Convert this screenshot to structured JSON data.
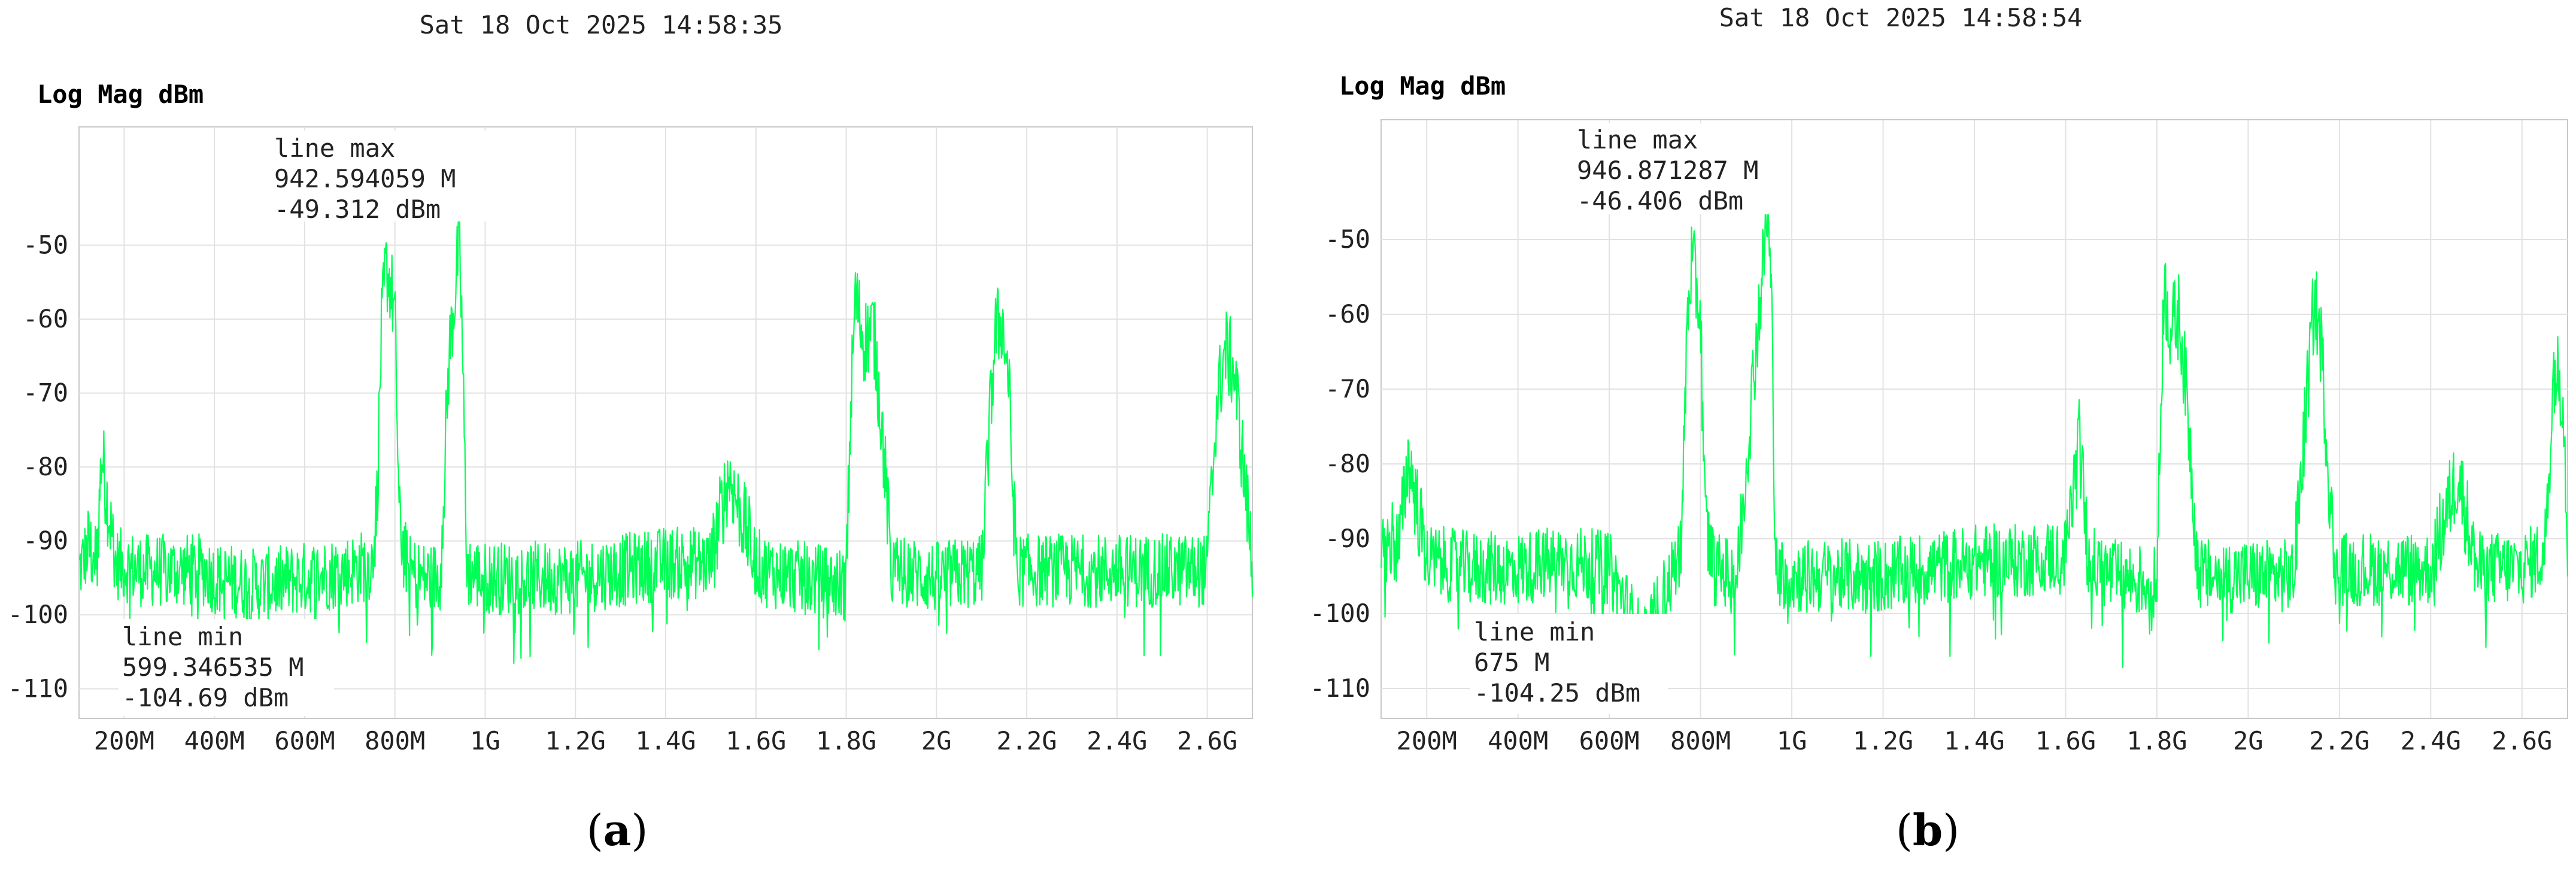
{
  "panels": [
    {
      "id": "a",
      "timestamp": "Sat 18 Oct 2025 14:58:35",
      "ylabel": "Log Mag dBm",
      "caption_open": "(",
      "caption_letter": "a",
      "caption_close": ")",
      "max_marker": {
        "title": "line max",
        "freq": "942.594059 M",
        "level": "-49.312 dBm"
      },
      "min_marker": {
        "title": "line min",
        "freq": "599.346535 M",
        "level": "-104.69 dBm"
      }
    },
    {
      "id": "b",
      "timestamp": "Sat 18 Oct 2025 14:58:54",
      "ylabel": "Log Mag dBm",
      "caption_open": "(",
      "caption_letter": "b",
      "caption_close": ")",
      "max_marker": {
        "title": "line max",
        "freq": "946.871287 M",
        "level": "-46.406 dBm"
      },
      "min_marker": {
        "title": "line min",
        "freq": "675 M",
        "level": "-104.25 dBm"
      }
    }
  ],
  "chart_data": [
    {
      "type": "line",
      "title": "Sat 18 Oct 2025 14:58:35",
      "ylabel": "Log Mag dBm",
      "xlabel": "",
      "x_unit": "Hz",
      "xlim": [
        100000000,
        2700000000
      ],
      "ylim": [
        -114,
        -34
      ],
      "grid": true,
      "line_color": "#00ff55",
      "x_tick_values": [
        200000000,
        400000000,
        600000000,
        800000000,
        1000000000,
        1200000000,
        1400000000,
        1600000000,
        1800000000,
        2000000000,
        2200000000,
        2400000000,
        2600000000
      ],
      "x_tick_labels": [
        "200M",
        "400M",
        "600M",
        "800M",
        "1G",
        "1.2G",
        "1.4G",
        "1.6G",
        "1.8G",
        "2G",
        "2.2G",
        "2.4G",
        "2.6G"
      ],
      "y_tick_values": [
        -50,
        -60,
        -70,
        -80,
        -90,
        -100,
        -110
      ],
      "y_tick_labels": [
        "-50",
        "-60",
        "-70",
        "-80",
        "-90",
        "-100",
        "-110"
      ],
      "noise_floor_dBm": -94.5,
      "markers": [
        {
          "label": "line max",
          "x": 942594059,
          "y": -49.312
        },
        {
          "label": "line min",
          "x": 599346535,
          "y": -104.69
        }
      ],
      "series": [
        {
          "x": [
            100000000,
            120000000,
            140000000,
            150000000,
            180000000,
            240000000,
            300000000,
            380000000,
            400000000,
            500000000,
            600000000,
            700000000,
            750000000,
            760000000,
            770000000,
            780000000,
            790000000,
            800000000,
            810000000,
            830000000,
            860000000,
            900000000,
            920000000,
            935000000,
            942000000,
            948000000,
            960000000,
            1000000000,
            1100000000,
            1200000000,
            1300000000,
            1400000000,
            1500000000,
            1540000000,
            1600000000,
            1620000000,
            1700000000,
            1800000000,
            1810000000,
            1820000000,
            1840000000,
            1860000000,
            1880000000,
            1900000000,
            2000000000,
            2100000000,
            2120000000,
            2130000000,
            2145000000,
            2160000000,
            2170000000,
            2180000000,
            2300000000,
            2400000000,
            2500000000,
            2600000000,
            2620000000,
            2640000000,
            2660000000,
            2680000000,
            2700000000
          ],
          "y": [
            -94,
            -91,
            -92,
            -78,
            -93,
            -94,
            -94,
            -94,
            -95,
            -96,
            -95,
            -94,
            -93,
            -85,
            -62,
            -53,
            -55,
            -60,
            -88,
            -94,
            -95,
            -95,
            -65,
            -55,
            -49.3,
            -60,
            -94,
            -95,
            -95,
            -95,
            -94,
            -93,
            -93,
            -81,
            -93,
            -94,
            -95,
            -96,
            -72,
            -57,
            -63,
            -61,
            -75,
            -94,
            -95,
            -94,
            -72,
            -62,
            -60,
            -68,
            -85,
            -94,
            -94,
            -94,
            -94,
            -94,
            -72,
            -64,
            -67,
            -80,
            -93
          ]
        }
      ]
    },
    {
      "type": "line",
      "title": "Sat 18 Oct 2025 14:58:54",
      "ylabel": "Log Mag dBm",
      "xlabel": "",
      "x_unit": "Hz",
      "xlim": [
        100000000,
        2700000000
      ],
      "ylim": [
        -114,
        -34
      ],
      "grid": true,
      "line_color": "#00ff55",
      "x_tick_values": [
        200000000,
        400000000,
        600000000,
        800000000,
        1000000000,
        1200000000,
        1400000000,
        1600000000,
        1800000000,
        2000000000,
        2200000000,
        2400000000,
        2600000000
      ],
      "x_tick_labels": [
        "200M",
        "400M",
        "600M",
        "800M",
        "1G",
        "1.2G",
        "1.4G",
        "1.6G",
        "1.8G",
        "2G",
        "2.2G",
        "2.4G",
        "2.6G"
      ],
      "y_tick_values": [
        -50,
        -60,
        -70,
        -80,
        -90,
        -100,
        -110
      ],
      "y_tick_labels": [
        "-50",
        "-60",
        "-70",
        "-80",
        "-90",
        "-100",
        "-110"
      ],
      "noise_floor_dBm": -94,
      "markers": [
        {
          "label": "line max",
          "x": 946871287,
          "y": -46.406
        },
        {
          "label": "line min",
          "x": 675000000,
          "y": -104.25
        }
      ],
      "series": [
        {
          "x": [
            100000000,
            120000000,
            140000000,
            160000000,
            200000000,
            300000000,
            400000000,
            500000000,
            600000000,
            675000000,
            750000000,
            760000000,
            770000000,
            780000000,
            790000000,
            800000000,
            810000000,
            830000000,
            880000000,
            920000000,
            935000000,
            946000000,
            955000000,
            965000000,
            1000000000,
            1100000000,
            1200000000,
            1300000000,
            1400000000,
            1500000000,
            1600000000,
            1630000000,
            1650000000,
            1700000000,
            1800000000,
            1815000000,
            1830000000,
            1850000000,
            1870000000,
            1890000000,
            1900000000,
            2000000000,
            2100000000,
            2130000000,
            2145000000,
            2160000000,
            2175000000,
            2190000000,
            2300000000,
            2400000000,
            2460000000,
            2500000000,
            2600000000,
            2650000000,
            2670000000,
            2690000000,
            2700000000
          ],
          "y": [
            -93,
            -90,
            -91,
            -79,
            -93,
            -94,
            -94,
            -93,
            -94,
            -104.25,
            -93,
            -88,
            -62,
            -53,
            -56,
            -60,
            -88,
            -94,
            -95,
            -65,
            -55,
            -46.4,
            -57,
            -94,
            -95,
            -95,
            -95,
            -94,
            -93,
            -93,
            -92,
            -77,
            -93,
            -95,
            -96,
            -56,
            -62,
            -60,
            -75,
            -94,
            -95,
            -95,
            -95,
            -70,
            -58,
            -64,
            -80,
            -94,
            -94,
            -94,
            -81,
            -94,
            -94,
            -92,
            -67,
            -70,
            -91
          ]
        }
      ]
    }
  ]
}
